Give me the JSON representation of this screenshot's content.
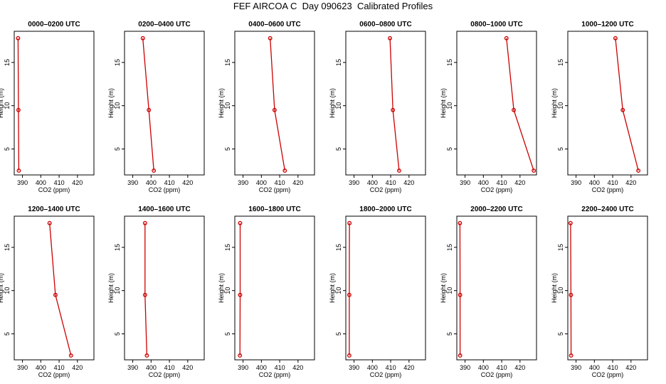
{
  "title": "FEF AIRCOA C  Day 090623  Calibrated Profiles",
  "chart_data": {
    "type": "line",
    "xlabel": "CO2 (ppm)",
    "ylabel": "Height (m)",
    "xlim": [
      385.5,
      429
    ],
    "ylim": [
      2,
      18.6
    ],
    "xticks": [
      390,
      400,
      410,
      420
    ],
    "yticks": [
      5,
      10,
      15
    ],
    "heights": [
      17.8,
      9.5,
      2.5
    ],
    "line_color": "#cc0000",
    "panels": [
      {
        "title": "0000–0200 UTC",
        "values": [
          387.6,
          387.8,
          388.0
        ]
      },
      {
        "title": "0200–0400 UTC",
        "values": [
          395.5,
          398.8,
          401.5
        ]
      },
      {
        "title": "0400–0600 UTC",
        "values": [
          404.8,
          407.2,
          412.8
        ]
      },
      {
        "title": "0600–0800 UTC",
        "values": [
          409.6,
          411.2,
          414.6
        ]
      },
      {
        "title": "0800–1000 UTC",
        "values": [
          412.6,
          416.6,
          427.5
        ]
      },
      {
        "title": "1000–1200 UTC",
        "values": [
          411.5,
          415.5,
          424.0
        ]
      },
      {
        "title": "1200–1400 UTC",
        "values": [
          404.8,
          408.0,
          416.5
        ]
      },
      {
        "title": "1400–1600 UTC",
        "values": [
          396.7,
          396.7,
          397.7
        ]
      },
      {
        "title": "1600–1800 UTC",
        "values": [
          388.4,
          388.4,
          388.3
        ]
      },
      {
        "title": "1800–2000 UTC",
        "values": [
          387.5,
          387.4,
          387.4
        ]
      },
      {
        "title": "2000–2200 UTC",
        "values": [
          387.2,
          387.3,
          387.3
        ]
      },
      {
        "title": "2200–2400 UTC",
        "values": [
          387.0,
          387.2,
          387.3
        ]
      }
    ]
  }
}
